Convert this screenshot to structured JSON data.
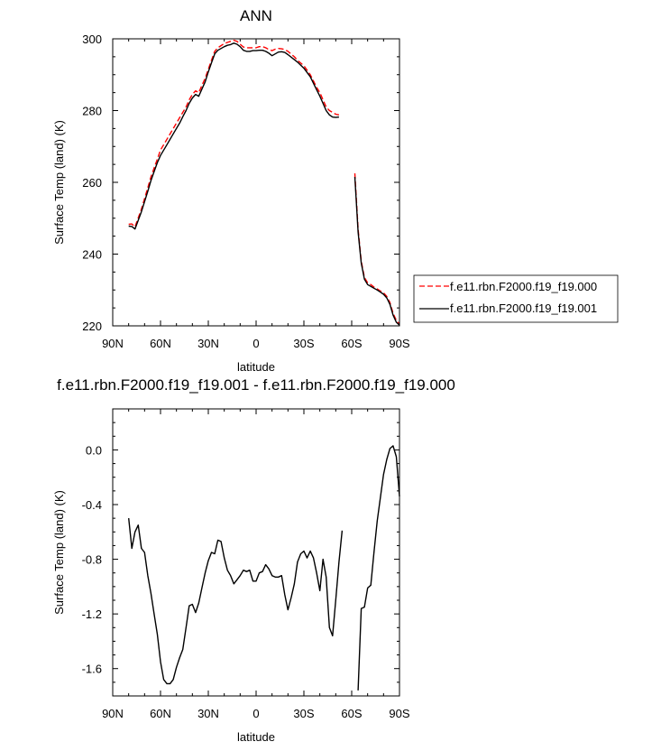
{
  "chart_data": [
    {
      "type": "line",
      "title": "ANN",
      "xlabel": "latitude",
      "ylabel": "Surface Temp (land) (K)",
      "xlim": [
        90,
        -90
      ],
      "ylim": [
        220,
        300
      ],
      "xticks": [
        90,
        60,
        30,
        0,
        -30,
        -60,
        -90
      ],
      "xtick_labels": [
        "90N",
        "60N",
        "30N",
        "0",
        "30S",
        "60S",
        "90S"
      ],
      "yticks": [
        220,
        240,
        260,
        280,
        300
      ],
      "ytick_labels": [
        "220",
        "240",
        "260",
        "280",
        "300"
      ],
      "legend_position": "right",
      "series": [
        {
          "name": "f.e11.rbn.F2000.f19_f19.000",
          "color": "#ff0000",
          "style": "dashed",
          "segments": [
            [
              [
                80,
                248.3
              ],
              [
                78,
                248.4
              ],
              [
                76,
                247.6
              ],
              [
                72,
                252.5
              ],
              [
                68,
                258.5
              ],
              [
                66,
                261.5
              ],
              [
                64,
                264
              ],
              [
                62,
                266.5
              ],
              [
                60,
                269
              ],
              [
                56,
                272
              ],
              [
                52,
                275
              ],
              [
                48,
                278
              ],
              [
                46,
                279.5
              ],
              [
                44,
                281
              ],
              [
                42,
                283
              ],
              [
                40,
                284.5
              ],
              [
                38,
                285.5
              ],
              [
                36,
                285
              ],
              [
                34,
                287
              ],
              [
                32,
                289
              ],
              [
                30,
                291.5
              ],
              [
                28,
                294
              ],
              [
                26,
                296.5
              ],
              [
                24,
                297.5
              ],
              [
                20,
                298.7
              ],
              [
                18,
                299
              ],
              [
                16,
                299.3
              ],
              [
                14,
                299.6
              ],
              [
                12,
                299.3
              ],
              [
                10,
                298.5
              ],
              [
                8,
                297.7
              ],
              [
                6,
                297.5
              ],
              [
                4,
                297.5
              ],
              [
                2,
                297.5
              ],
              [
                0,
                297.5
              ],
              [
                -2,
                297.8
              ],
              [
                -4,
                297.8
              ],
              [
                -6,
                297.5
              ],
              [
                -8,
                297
              ],
              [
                -10,
                296.7
              ],
              [
                -12,
                297.1
              ],
              [
                -14,
                297.3
              ],
              [
                -16,
                297.2
              ],
              [
                -18,
                297
              ],
              [
                -20,
                296.5
              ],
              [
                -24,
                295
              ],
              [
                -26,
                294
              ],
              [
                -30,
                292.5
              ],
              [
                -34,
                290
              ],
              [
                -38,
                286.5
              ],
              [
                -40,
                285
              ],
              [
                -42,
                283
              ],
              [
                -44,
                281
              ],
              [
                -46,
                280
              ],
              [
                -48,
                279.5
              ],
              [
                -50,
                279
              ],
              [
                -52,
                278.8
              ]
            ],
            [
              [
                -62,
                262.5
              ],
              [
                -64,
                247
              ],
              [
                -66,
                238
              ],
              [
                -68,
                233.5
              ],
              [
                -70,
                232
              ],
              [
                -72,
                231.5
              ],
              [
                -74,
                230.8
              ],
              [
                -76,
                230.3
              ],
              [
                -78,
                229.7
              ],
              [
                -80,
                229.2
              ],
              [
                -82,
                228.2
              ],
              [
                -84,
                226.5
              ],
              [
                -86,
                223.5
              ],
              [
                -88,
                221.5
              ],
              [
                -90,
                220.5
              ]
            ]
          ]
        },
        {
          "name": "f.e11.rbn.F2000.f19_f19.001",
          "color": "#000000",
          "style": "solid",
          "segments": [
            [
              [
                80,
                247.8
              ],
              [
                78,
                247.7
              ],
              [
                76,
                247
              ],
              [
                72,
                251.8
              ],
              [
                68,
                257.5
              ],
              [
                66,
                260.5
              ],
              [
                64,
                263
              ],
              [
                62,
                265.5
              ],
              [
                60,
                267.5
              ],
              [
                56,
                270.5
              ],
              [
                52,
                273.5
              ],
              [
                48,
                276.5
              ],
              [
                46,
                278.3
              ],
              [
                44,
                280
              ],
              [
                42,
                282
              ],
              [
                40,
                283.5
              ],
              [
                38,
                284.5
              ],
              [
                36,
                284
              ],
              [
                34,
                286
              ],
              [
                32,
                288
              ],
              [
                30,
                290.8
              ],
              [
                28,
                293.3
              ],
              [
                26,
                295.8
              ],
              [
                24,
                296.8
              ],
              [
                20,
                297.8
              ],
              [
                18,
                298.2
              ],
              [
                16,
                298.4
              ],
              [
                14,
                298.8
              ],
              [
                12,
                298.5
              ],
              [
                10,
                297.8
              ],
              [
                8,
                296.8
              ],
              [
                6,
                296.5
              ],
              [
                4,
                296.5
              ],
              [
                2,
                296.7
              ],
              [
                0,
                296.7
              ],
              [
                -2,
                296.8
              ],
              [
                -4,
                296.8
              ],
              [
                -6,
                296.5
              ],
              [
                -8,
                296
              ],
              [
                -10,
                295.3
              ],
              [
                -12,
                295.8
              ],
              [
                -14,
                296.3
              ],
              [
                -16,
                296.4
              ],
              [
                -18,
                296.2
              ],
              [
                -20,
                295.6
              ],
              [
                -24,
                294.2
              ],
              [
                -26,
                293.5
              ],
              [
                -30,
                291.8
              ],
              [
                -34,
                289.4
              ],
              [
                -38,
                285.8
              ],
              [
                -40,
                284
              ],
              [
                -42,
                282
              ],
              [
                -44,
                280
              ],
              [
                -46,
                278.8
              ],
              [
                -48,
                278.2
              ],
              [
                -50,
                278.1
              ],
              [
                -52,
                278.2
              ]
            ],
            [
              [
                -62,
                261.5
              ],
              [
                -64,
                246.2
              ],
              [
                -66,
                237.5
              ],
              [
                -68,
                233
              ],
              [
                -70,
                231.5
              ],
              [
                -72,
                231
              ],
              [
                -74,
                230.5
              ],
              [
                -76,
                230
              ],
              [
                -78,
                229.4
              ],
              [
                -80,
                228.8
              ],
              [
                -82,
                227.8
              ],
              [
                -84,
                226
              ],
              [
                -86,
                223
              ],
              [
                -88,
                221
              ],
              [
                -90,
                220.2
              ]
            ]
          ]
        }
      ]
    },
    {
      "type": "line",
      "title": "f.e11.rbn.F2000.f19_f19.001 - f.e11.rbn.F2000.f19_f19.000",
      "xlabel": "latitude",
      "ylabel": "Surface Temp (land) (K)",
      "xlim": [
        90,
        -90
      ],
      "ylim": [
        -1.8,
        0.3
      ],
      "xticks": [
        90,
        60,
        30,
        0,
        -30,
        -60,
        -90
      ],
      "xtick_labels": [
        "90N",
        "60N",
        "30N",
        "0",
        "30S",
        "60S",
        "90S"
      ],
      "yticks": [
        -1.6,
        -1.2,
        -0.8,
        -0.4,
        0.0
      ],
      "ytick_labels": [
        "-1.6",
        "-1.2",
        "-0.8",
        "-0.4",
        "0.0"
      ],
      "series": [
        {
          "color": "#000000",
          "style": "solid",
          "segments": [
            [
              [
                80,
                -0.5
              ],
              [
                78,
                -0.72
              ],
              [
                76,
                -0.6
              ],
              [
                74,
                -0.55
              ],
              [
                72,
                -0.72
              ],
              [
                70,
                -0.75
              ],
              [
                68,
                -0.92
              ],
              [
                66,
                -1.05
              ],
              [
                64,
                -1.2
              ],
              [
                62,
                -1.35
              ],
              [
                60,
                -1.55
              ],
              [
                58,
                -1.68
              ],
              [
                56,
                -1.71
              ],
              [
                54,
                -1.71
              ],
              [
                52,
                -1.68
              ],
              [
                50,
                -1.59
              ],
              [
                48,
                -1.52
              ],
              [
                46,
                -1.46
              ],
              [
                44,
                -1.3
              ],
              [
                42,
                -1.14
              ],
              [
                40,
                -1.13
              ],
              [
                38,
                -1.19
              ],
              [
                36,
                -1.12
              ],
              [
                34,
                -1.01
              ],
              [
                32,
                -0.9
              ],
              [
                30,
                -0.81
              ],
              [
                28,
                -0.75
              ],
              [
                26,
                -0.76
              ],
              [
                24,
                -0.66
              ],
              [
                22,
                -0.67
              ],
              [
                20,
                -0.79
              ],
              [
                18,
                -0.88
              ],
              [
                16,
                -0.92
              ],
              [
                14,
                -0.98
              ],
              [
                12,
                -0.95
              ],
              [
                10,
                -0.92
              ],
              [
                8,
                -0.88
              ],
              [
                6,
                -0.89
              ],
              [
                4,
                -0.88
              ],
              [
                2,
                -0.96
              ],
              [
                0,
                -0.96
              ],
              [
                -2,
                -0.9
              ],
              [
                -4,
                -0.89
              ],
              [
                -6,
                -0.84
              ],
              [
                -8,
                -0.87
              ],
              [
                -10,
                -0.92
              ],
              [
                -12,
                -0.93
              ],
              [
                -14,
                -0.93
              ],
              [
                -16,
                -0.92
              ],
              [
                -18,
                -1.06
              ],
              [
                -20,
                -1.17
              ],
              [
                -22,
                -1.08
              ],
              [
                -24,
                -0.98
              ],
              [
                -26,
                -0.82
              ],
              [
                -28,
                -0.76
              ],
              [
                -30,
                -0.74
              ],
              [
                -32,
                -0.79
              ],
              [
                -34,
                -0.74
              ],
              [
                -36,
                -0.79
              ],
              [
                -38,
                -0.9
              ],
              [
                -40,
                -1.03
              ],
              [
                -42,
                -0.8
              ],
              [
                -44,
                -0.93
              ],
              [
                -46,
                -1.3
              ],
              [
                -48,
                -1.36
              ],
              [
                -50,
                -1.1
              ],
              [
                -52,
                -0.82
              ],
              [
                -54,
                -0.59
              ]
            ],
            [
              [
                -64,
                -1.76
              ],
              [
                -66,
                -1.16
              ],
              [
                -68,
                -1.15
              ],
              [
                -70,
                -1.01
              ],
              [
                -72,
                -0.99
              ],
              [
                -74,
                -0.75
              ],
              [
                -76,
                -0.52
              ],
              [
                -78,
                -0.35
              ],
              [
                -80,
                -0.18
              ],
              [
                -82,
                -0.07
              ],
              [
                -84,
                0.01
              ],
              [
                -86,
                0.03
              ],
              [
                -88,
                -0.05
              ],
              [
                -90,
                -0.34
              ]
            ]
          ]
        }
      ]
    }
  ]
}
